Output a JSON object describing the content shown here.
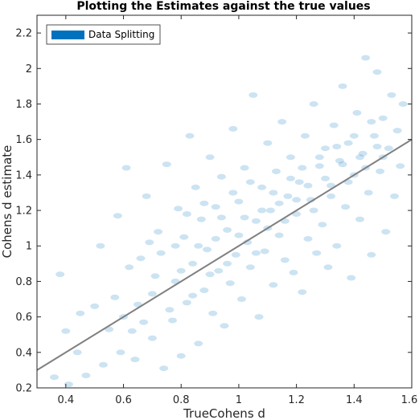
{
  "chart_data": {
    "type": "scatter",
    "title": "Plotting the Estimates against the true values",
    "xlabel": "TrueCohens d",
    "ylabel": "Cohens d estimate",
    "xlim": [
      0.3,
      1.6
    ],
    "ylim": [
      0.2,
      2.3
    ],
    "xticks": [
      0.4,
      0.6,
      0.8,
      1,
      1.2,
      1.4,
      1.6
    ],
    "yticks": [
      0.2,
      0.4,
      0.6,
      0.8,
      1,
      1.2,
      1.4,
      1.6,
      1.8,
      2,
      2.2
    ],
    "xtick_labels": [
      "0.4",
      "0.6",
      "0.8",
      "1",
      "1.2",
      "1.4",
      "1.6"
    ],
    "ytick_labels": [
      "0.2",
      "0.4",
      "0.6",
      "0.8",
      "1",
      "1.2",
      "1.4",
      "1.6",
      "1.8",
      "2",
      "2.2"
    ],
    "grid": false,
    "legend": {
      "position": "top-left",
      "entries": [
        "Data Splitting"
      ]
    },
    "series": [
      {
        "name": "Data Splitting",
        "color": "#0072BD",
        "opacity": 0.2,
        "points": [
          [
            0.36,
            0.26
          ],
          [
            0.38,
            0.84
          ],
          [
            0.41,
            0.22
          ],
          [
            0.45,
            0.62
          ],
          [
            0.47,
            0.27
          ],
          [
            0.52,
            1.0
          ],
          [
            0.55,
            0.53
          ],
          [
            0.58,
            1.17
          ],
          [
            0.59,
            0.4
          ],
          [
            0.61,
            1.44
          ],
          [
            0.63,
            0.52
          ],
          [
            0.64,
            0.36
          ],
          [
            0.66,
            0.93
          ],
          [
            0.68,
            1.28
          ],
          [
            0.7,
            0.48
          ],
          [
            0.71,
            0.83
          ],
          [
            0.72,
            1.08
          ],
          [
            0.74,
            0.31
          ],
          [
            0.75,
            1.46
          ],
          [
            0.77,
            0.58
          ],
          [
            0.78,
            0.8
          ],
          [
            0.79,
            1.21
          ],
          [
            0.8,
            0.38
          ],
          [
            0.81,
            1.05
          ],
          [
            0.82,
            0.68
          ],
          [
            0.83,
            1.62
          ],
          [
            0.84,
            0.9
          ],
          [
            0.85,
            1.33
          ],
          [
            0.86,
            0.45
          ],
          [
            0.87,
            1.15
          ],
          [
            0.88,
            0.75
          ],
          [
            0.89,
            0.98
          ],
          [
            0.9,
            1.5
          ],
          [
            0.91,
            0.62
          ],
          [
            0.92,
            1.22
          ],
          [
            0.93,
            0.86
          ],
          [
            0.94,
            1.39
          ],
          [
            0.95,
            0.55
          ],
          [
            0.96,
            1.09
          ],
          [
            0.97,
            0.79
          ],
          [
            0.98,
            1.66
          ],
          [
            0.99,
            0.95
          ],
          [
            1.0,
            1.25
          ],
          [
            1.01,
            0.7
          ],
          [
            1.02,
            1.44
          ],
          [
            1.03,
            1.02
          ],
          [
            1.04,
            0.88
          ],
          [
            1.05,
            1.85
          ],
          [
            1.06,
            1.14
          ],
          [
            1.07,
            0.6
          ],
          [
            1.08,
            1.33
          ],
          [
            1.09,
            0.97
          ],
          [
            1.1,
            1.58
          ],
          [
            1.11,
            1.2
          ],
          [
            1.12,
            0.78
          ],
          [
            1.13,
            1.42
          ],
          [
            1.14,
            1.06
          ],
          [
            1.15,
            1.7
          ],
          [
            1.16,
            0.92
          ],
          [
            1.17,
            1.28
          ],
          [
            1.18,
            1.5
          ],
          [
            1.19,
            0.85
          ],
          [
            1.2,
            1.18
          ],
          [
            1.21,
            1.36
          ],
          [
            1.22,
            0.74
          ],
          [
            1.23,
            1.62
          ],
          [
            1.24,
            1.04
          ],
          [
            1.25,
            1.26
          ],
          [
            1.26,
            1.8
          ],
          [
            1.27,
            0.96
          ],
          [
            1.28,
            1.45
          ],
          [
            1.29,
            1.12
          ],
          [
            1.3,
            1.55
          ],
          [
            1.31,
            0.88
          ],
          [
            1.32,
            1.34
          ],
          [
            1.33,
            1.68
          ],
          [
            1.34,
            1.0
          ],
          [
            1.35,
            1.48
          ],
          [
            1.36,
            1.9
          ],
          [
            1.37,
            1.22
          ],
          [
            1.38,
            1.58
          ],
          [
            1.39,
            0.82
          ],
          [
            1.4,
            1.4
          ],
          [
            1.41,
            1.75
          ],
          [
            1.42,
            1.15
          ],
          [
            1.43,
            1.52
          ],
          [
            1.44,
            2.06
          ],
          [
            1.45,
            1.3
          ],
          [
            1.46,
            0.95
          ],
          [
            1.47,
            1.62
          ],
          [
            1.48,
            1.98
          ],
          [
            1.49,
            1.42
          ],
          [
            1.5,
            1.72
          ],
          [
            1.51,
            1.08
          ],
          [
            1.52,
            1.55
          ],
          [
            1.53,
            1.85
          ],
          [
            1.54,
            1.28
          ],
          [
            1.55,
            1.65
          ],
          [
            1.56,
            1.45
          ],
          [
            1.57,
            1.8
          ],
          [
            0.4,
            0.52
          ],
          [
            0.44,
            0.4
          ],
          [
            0.5,
            0.66
          ],
          [
            0.53,
            0.33
          ],
          [
            0.57,
            0.71
          ],
          [
            0.6,
            0.6
          ],
          [
            0.62,
            0.88
          ],
          [
            0.65,
            0.67
          ],
          [
            0.67,
            0.57
          ],
          [
            0.69,
            1.02
          ],
          [
            0.7,
            0.73
          ],
          [
            0.73,
            0.96
          ],
          [
            0.76,
            0.64
          ],
          [
            0.78,
            1.0
          ],
          [
            0.8,
            0.86
          ],
          [
            0.82,
            1.18
          ],
          [
            0.84,
            0.72
          ],
          [
            0.86,
            1.0
          ],
          [
            0.88,
            1.24
          ],
          [
            0.9,
            0.84
          ],
          [
            0.92,
            1.04
          ],
          [
            0.94,
            1.16
          ],
          [
            0.96,
            0.9
          ],
          [
            0.98,
            1.3
          ],
          [
            1.0,
            1.06
          ],
          [
            1.02,
            1.16
          ],
          [
            1.04,
            1.36
          ],
          [
            1.06,
            0.96
          ],
          [
            1.08,
            1.2
          ],
          [
            1.1,
            1.1
          ],
          [
            1.12,
            1.3
          ],
          [
            1.14,
            1.24
          ],
          [
            1.16,
            1.14
          ],
          [
            1.18,
            1.38
          ],
          [
            1.2,
            1.26
          ],
          [
            1.22,
            1.44
          ],
          [
            1.24,
            1.34
          ],
          [
            1.26,
            1.2
          ],
          [
            1.28,
            1.5
          ],
          [
            1.3,
            1.38
          ],
          [
            1.32,
            1.28
          ],
          [
            1.34,
            1.56
          ],
          [
            1.36,
            1.46
          ],
          [
            1.38,
            1.36
          ],
          [
            1.4,
            1.62
          ],
          [
            1.42,
            1.5
          ],
          [
            1.44,
            1.44
          ],
          [
            1.46,
            1.7
          ],
          [
            1.48,
            1.56
          ],
          [
            1.5,
            1.5
          ]
        ]
      }
    ],
    "reference_line": {
      "from": [
        0.3,
        0.3
      ],
      "to": [
        1.6,
        1.6
      ],
      "color": "#808080"
    }
  }
}
